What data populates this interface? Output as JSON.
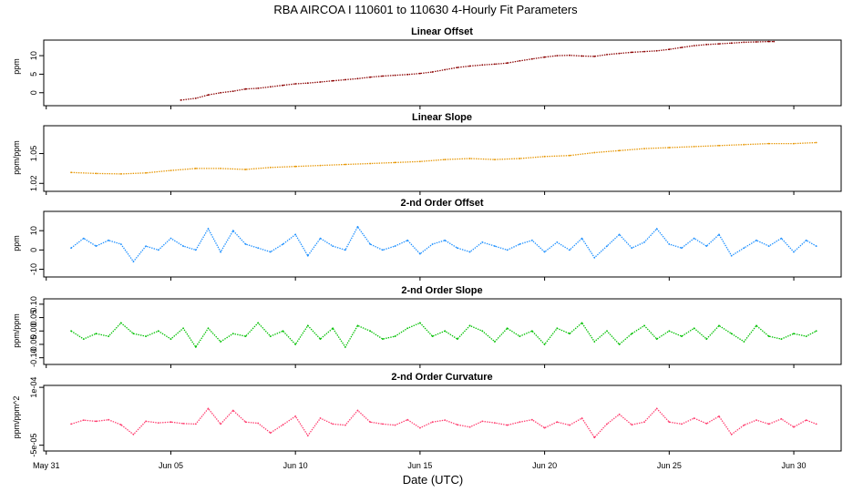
{
  "title": "RBA   AIRCOA I   110601 to 110630   4-Hourly Fit Parameters",
  "xlabel": "Date (UTC)",
  "x_ticks": [
    "May 31",
    "Jun 05",
    "Jun 10",
    "Jun 15",
    "Jun 20",
    "Jun 25",
    "Jun 30"
  ],
  "x_tick_values": [
    0,
    5,
    10,
    15,
    20,
    25,
    30
  ],
  "x_range": [
    -0.1,
    31.9
  ],
  "colors": {
    "linear_offset": "#8b0000",
    "linear_slope": "#e69500",
    "second_offset": "#1e90ff",
    "second_slope": "#00c000",
    "curvature": "#ff3c6e"
  },
  "chart_data": [
    {
      "type": "line",
      "title": "Linear Offset",
      "ylabel": "ppm",
      "y_ticks": [
        "0",
        "5",
        "10"
      ],
      "y_tick_values": [
        0,
        5,
        10
      ],
      "ylim": [
        -3.5,
        14.2
      ],
      "series": [
        {
          "name": "Linear Offset",
          "color_key": "linear_offset",
          "x": [
            5.4,
            6.0,
            6.5,
            7.0,
            7.5,
            8.0,
            8.5,
            9.0,
            9.5,
            10.0,
            10.5,
            11.0,
            11.5,
            12.0,
            12.5,
            13.0,
            13.5,
            14.0,
            14.5,
            15.0,
            15.5,
            16.0,
            16.5,
            17.0,
            17.5,
            18.0,
            18.5,
            19.0,
            19.5,
            20.0,
            20.5,
            21.0,
            21.5,
            22.0,
            22.5,
            23.0,
            23.5,
            24.0,
            24.5,
            25.0,
            25.5,
            26.0,
            26.5,
            27.0,
            27.5,
            28.0,
            28.5,
            29.0,
            29.2
          ],
          "values": [
            -2.0,
            -1.5,
            -0.6,
            0.0,
            0.4,
            1.0,
            1.2,
            1.6,
            2.0,
            2.4,
            2.6,
            2.9,
            3.2,
            3.5,
            3.8,
            4.2,
            4.5,
            4.7,
            4.9,
            5.2,
            5.6,
            6.2,
            6.8,
            7.2,
            7.5,
            7.7,
            8.0,
            8.6,
            9.1,
            9.6,
            10.0,
            10.1,
            9.9,
            9.8,
            10.3,
            10.6,
            10.9,
            11.1,
            11.3,
            11.7,
            12.2,
            12.7,
            13.0,
            13.2,
            13.4,
            13.6,
            13.7,
            13.8,
            13.8
          ]
        }
      ]
    },
    {
      "type": "line",
      "title": "Linear Slope",
      "ylabel": "ppm/ppm",
      "y_ticks": [
        "1.02",
        "1.05"
      ],
      "y_tick_values": [
        1.02,
        1.05
      ],
      "ylim": [
        1.012,
        1.078
      ],
      "series": [
        {
          "name": "Linear Slope",
          "color_key": "linear_slope",
          "x": [
            1.0,
            2.0,
            3.0,
            4.0,
            5.0,
            6.0,
            7.0,
            8.0,
            9.0,
            10.0,
            11.0,
            12.0,
            13.0,
            14.0,
            15.0,
            16.0,
            17.0,
            18.0,
            19.0,
            20.0,
            21.0,
            22.0,
            23.0,
            24.0,
            25.0,
            26.0,
            27.0,
            28.0,
            29.0,
            30.0,
            30.9
          ],
          "values": [
            1.031,
            1.03,
            1.0295,
            1.0305,
            1.033,
            1.035,
            1.035,
            1.034,
            1.036,
            1.037,
            1.038,
            1.039,
            1.04,
            1.041,
            1.042,
            1.044,
            1.045,
            1.044,
            1.045,
            1.047,
            1.048,
            1.051,
            1.053,
            1.055,
            1.056,
            1.057,
            1.058,
            1.059,
            1.06,
            1.06,
            1.061
          ]
        }
      ]
    },
    {
      "type": "line",
      "title": "2-nd Order Offset",
      "ylabel": "ppm",
      "y_ticks": [
        "-10",
        "0",
        "10"
      ],
      "y_tick_values": [
        -10,
        0,
        10
      ],
      "ylim": [
        -14,
        20
      ],
      "series": [
        {
          "name": "2-nd Order Offset",
          "color_key": "second_offset",
          "x": [
            1.0,
            1.5,
            2.0,
            2.5,
            3.0,
            3.5,
            4.0,
            4.5,
            5.0,
            5.5,
            6.0,
            6.5,
            7.0,
            7.5,
            8.0,
            8.5,
            9.0,
            9.5,
            10.0,
            10.5,
            11.0,
            11.5,
            12.0,
            12.5,
            13.0,
            13.5,
            14.0,
            14.5,
            15.0,
            15.5,
            16.0,
            16.5,
            17.0,
            17.5,
            18.0,
            18.5,
            19.0,
            19.5,
            20.0,
            20.5,
            21.0,
            21.5,
            22.0,
            22.5,
            23.0,
            23.5,
            24.0,
            24.5,
            25.0,
            25.5,
            26.0,
            26.5,
            27.0,
            27.5,
            28.0,
            28.5,
            29.0,
            29.5,
            30.0,
            30.5,
            30.9
          ],
          "values": [
            1,
            6,
            2,
            5,
            3,
            -6,
            2,
            0,
            6,
            2,
            0,
            11,
            -1,
            10,
            3,
            1,
            -1,
            3,
            8,
            -3,
            6,
            2,
            0,
            12,
            3,
            0,
            2,
            5,
            -2,
            3,
            5,
            1,
            -1,
            4,
            2,
            0,
            3,
            5,
            -1,
            4,
            0,
            6,
            -4,
            2,
            8,
            1,
            4,
            11,
            3,
            1,
            6,
            2,
            8,
            -3,
            1,
            5,
            2,
            6,
            -1,
            5,
            2
          ]
        }
      ]
    },
    {
      "type": "line",
      "title": "2-nd Order Slope",
      "ylabel": "ppm/ppm",
      "y_ticks": [
        "-0.10",
        "-0.05",
        "0.00",
        "0.05",
        "0.10"
      ],
      "y_tick_values": [
        -0.1,
        -0.05,
        0.0,
        0.05,
        0.1
      ],
      "ylim": [
        -0.125,
        0.12
      ],
      "series": [
        {
          "name": "2-nd Order Slope",
          "color_key": "second_slope",
          "x": [
            1.0,
            1.5,
            2.0,
            2.5,
            3.0,
            3.5,
            4.0,
            4.5,
            5.0,
            5.5,
            6.0,
            6.5,
            7.0,
            7.5,
            8.0,
            8.5,
            9.0,
            9.5,
            10.0,
            10.5,
            11.0,
            11.5,
            12.0,
            12.5,
            13.0,
            13.5,
            14.0,
            14.5,
            15.0,
            15.5,
            16.0,
            16.5,
            17.0,
            17.5,
            18.0,
            18.5,
            19.0,
            19.5,
            20.0,
            20.5,
            21.0,
            21.5,
            22.0,
            22.5,
            23.0,
            23.5,
            24.0,
            24.5,
            25.0,
            25.5,
            26.0,
            26.5,
            27.0,
            27.5,
            28.0,
            28.5,
            29.0,
            29.5,
            30.0,
            30.5,
            30.9
          ],
          "values": [
            0.0,
            -0.03,
            -0.01,
            -0.02,
            0.03,
            -0.01,
            -0.02,
            0.0,
            -0.03,
            0.01,
            -0.06,
            0.01,
            -0.04,
            -0.01,
            -0.02,
            0.03,
            -0.02,
            0.0,
            -0.05,
            0.02,
            -0.03,
            0.01,
            -0.06,
            0.02,
            0.0,
            -0.03,
            -0.02,
            0.01,
            0.03,
            -0.02,
            0.0,
            -0.03,
            0.02,
            0.0,
            -0.04,
            0.01,
            -0.02,
            0.0,
            -0.05,
            0.01,
            -0.01,
            0.03,
            -0.04,
            0.0,
            -0.05,
            -0.01,
            0.02,
            -0.03,
            0.0,
            -0.02,
            0.01,
            -0.03,
            0.02,
            -0.01,
            -0.04,
            0.02,
            -0.02,
            -0.03,
            -0.01,
            -0.02,
            0.0
          ]
        }
      ]
    },
    {
      "type": "line",
      "title": "2-nd Order Curvature",
      "ylabel": "ppm/ppm^2",
      "y_ticks": [
        "-5e-05",
        "1e-04"
      ],
      "y_tick_values": [
        -5e-05,
        0.0001
      ],
      "ylim": [
        -6.5e-05,
        0.000105
      ],
      "series": [
        {
          "name": "2-nd Order Curvature",
          "color_key": "curvature",
          "x": [
            1.0,
            1.5,
            2.0,
            2.5,
            3.0,
            3.5,
            4.0,
            4.5,
            5.0,
            5.5,
            6.0,
            6.5,
            7.0,
            7.5,
            8.0,
            8.5,
            9.0,
            9.5,
            10.0,
            10.5,
            11.0,
            11.5,
            12.0,
            12.5,
            13.0,
            13.5,
            14.0,
            14.5,
            15.0,
            15.5,
            16.0,
            16.5,
            17.0,
            17.5,
            18.0,
            18.5,
            19.0,
            19.5,
            20.0,
            20.5,
            21.0,
            21.5,
            22.0,
            22.5,
            23.0,
            23.5,
            24.0,
            24.5,
            25.0,
            25.5,
            26.0,
            26.5,
            27.0,
            27.5,
            28.0,
            28.5,
            29.0,
            29.5,
            30.0,
            30.5,
            30.9
          ],
          "values": [
            5e-06,
            1.5e-05,
            1.2e-05,
            1.6e-05,
            3e-06,
            -2.2e-05,
            1.2e-05,
            8e-06,
            1e-05,
            6e-06,
            5e-06,
            4.5e-05,
            5e-06,
            4e-05,
            1e-05,
            7e-06,
            -1.8e-05,
            3e-06,
            2.5e-05,
            -2.5e-05,
            2e-05,
            5e-06,
            2e-06,
            4e-05,
            1e-05,
            5e-06,
            2e-06,
            1.6e-05,
            -5e-06,
            1e-05,
            1.5e-05,
            3e-06,
            -3e-06,
            1.2e-05,
            8e-06,
            2e-06,
            1e-05,
            1.6e-05,
            -5e-06,
            1e-05,
            2e-06,
            2e-05,
            -3e-05,
            5e-06,
            3e-05,
            3e-06,
            1e-05,
            4.5e-05,
            1e-05,
            5e-06,
            2e-05,
            6e-06,
            2.5e-05,
            -2.2e-05,
            2e-06,
            1.5e-05,
            5e-06,
            1.8e-05,
            -3e-06,
            1.5e-05,
            5e-06
          ]
        }
      ]
    }
  ]
}
